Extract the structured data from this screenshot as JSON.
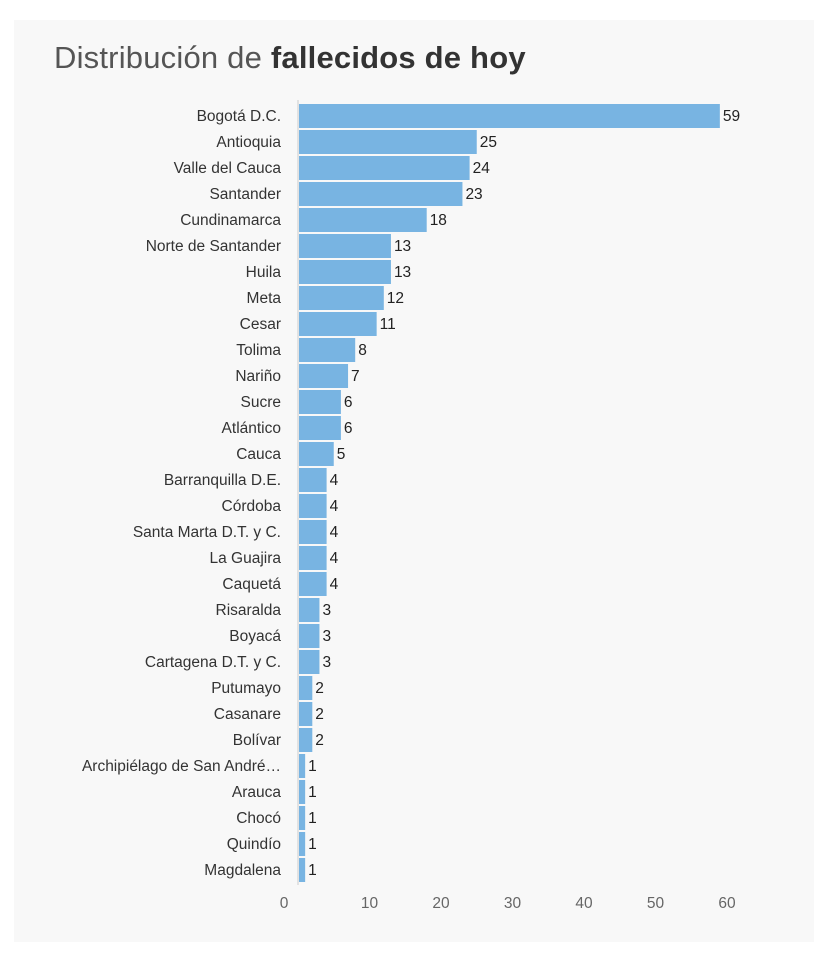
{
  "chart_data": {
    "type": "bar",
    "orientation": "horizontal",
    "title_prefix": "Distribución de ",
    "title_bold": "fallecidos de hoy",
    "categories": [
      "Bogotá D.C.",
      "Antioquia",
      "Valle del Cauca",
      "Santander",
      "Cundinamarca",
      "Norte de Santander",
      "Huila",
      "Meta",
      "Cesar",
      "Tolima",
      "Nariño",
      "Sucre",
      "Atlántico",
      "Cauca",
      "Barranquilla D.E.",
      "Córdoba",
      "Santa Marta D.T. y C.",
      "La Guajira",
      "Caquetá",
      "Risaralda",
      "Boyacá",
      "Cartagena D.T. y C.",
      "Putumayo",
      "Casanare",
      "Bolívar",
      "Archipiélago de San André…",
      "Arauca",
      "Chocó",
      "Quindío",
      "Magdalena"
    ],
    "values": [
      59,
      25,
      24,
      23,
      18,
      13,
      13,
      12,
      11,
      8,
      7,
      6,
      6,
      5,
      4,
      4,
      4,
      4,
      4,
      3,
      3,
      3,
      2,
      2,
      2,
      1,
      1,
      1,
      1,
      1
    ],
    "xlim": [
      0,
      60
    ],
    "xticks": [
      0,
      10,
      20,
      30,
      40,
      50,
      60
    ],
    "bar_color": "#78b4e2",
    "grid": false
  }
}
